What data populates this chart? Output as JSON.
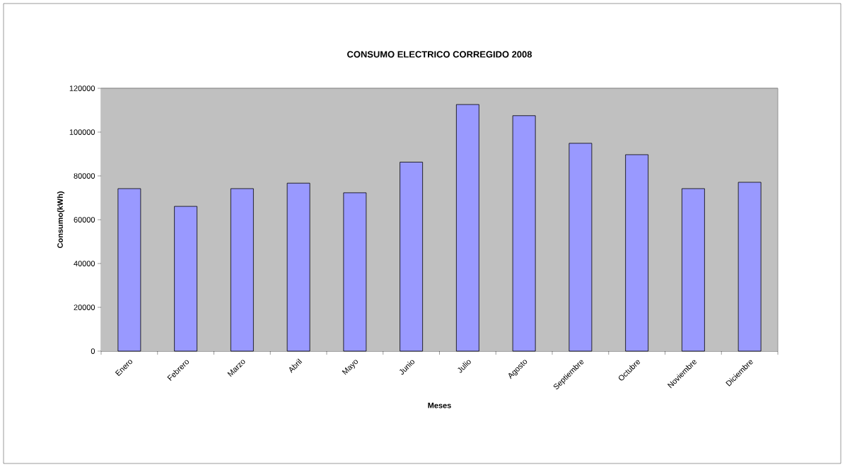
{
  "chart_data": {
    "type": "bar",
    "title": "CONSUMO ELECTRICO CORREGIDO 2008",
    "xlabel": "Meses",
    "ylabel": "Consumo(kWh)",
    "categories": [
      "Enero",
      "Febrero",
      "Marzo",
      "Abril",
      "Mayo",
      "Junio",
      "Julio",
      "Agosto",
      "Septiembre",
      "Octubre",
      "Noviembre",
      "Diciembre"
    ],
    "values": [
      74200,
      66100,
      74200,
      76700,
      72300,
      86300,
      112600,
      107500,
      94900,
      89700,
      74200,
      77100
    ],
    "color": "#9999ff",
    "ylim": [
      0,
      120000
    ],
    "yticks": [
      0,
      20000,
      40000,
      60000,
      80000,
      100000,
      120000
    ],
    "grid": "y"
  }
}
